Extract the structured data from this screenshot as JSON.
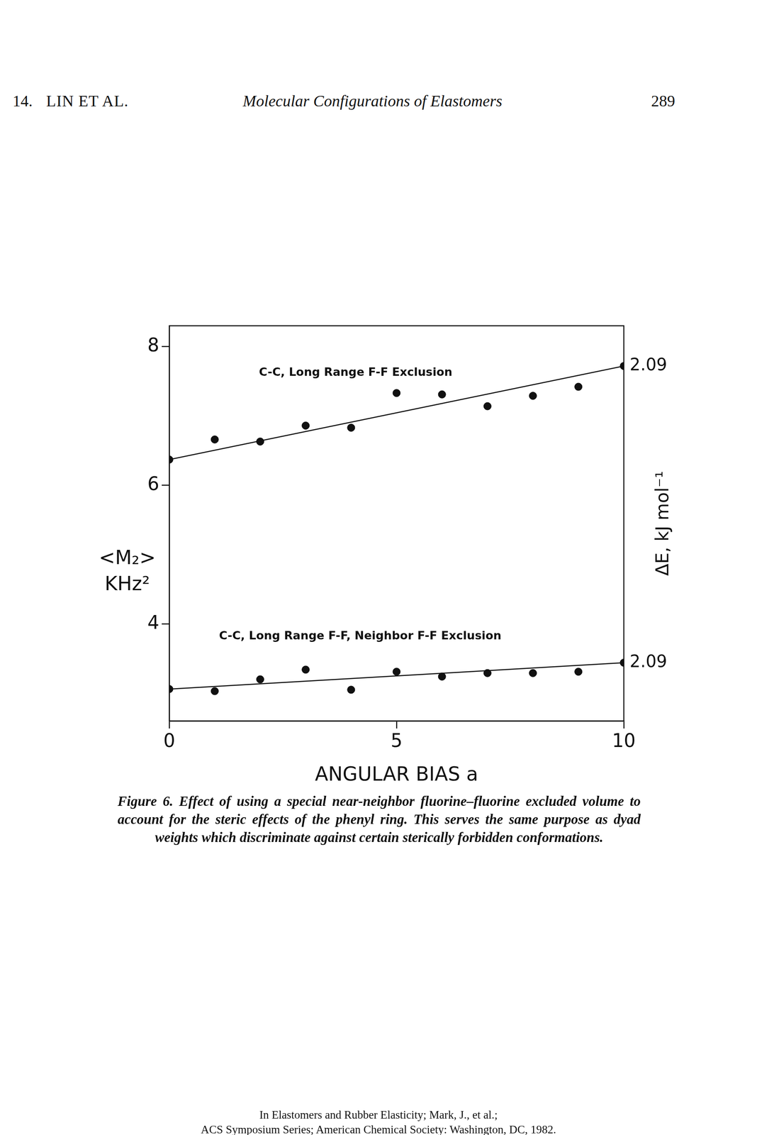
{
  "header": {
    "number": "14.",
    "authors": "LIN ET AL.",
    "title": "Molecular Configurations of Elastomers",
    "page": "289"
  },
  "chart_data": {
    "type": "scatter",
    "xlabel": "ANGULAR BIAS a",
    "ylabel": [
      "<M₂>",
      "KHz²"
    ],
    "y2label": "ΔE, kJ mol⁻¹",
    "xlim": [
      0,
      10
    ],
    "xticks": [
      0,
      5,
      10
    ],
    "ylim": [
      2.6,
      8.3
    ],
    "yticks": [
      4,
      6,
      8
    ],
    "grid": false,
    "legend": false,
    "series": [
      {
        "color": "#111111",
        "marker": "circle",
        "line_style": "none",
        "x": [
          0,
          1,
          2,
          3,
          4,
          5,
          6,
          7,
          8,
          9,
          10
        ],
        "values": [
          6.37,
          6.66,
          6.63,
          6.86,
          6.83,
          7.33,
          7.31,
          7.14,
          7.29,
          7.42,
          7.72
        ]
      },
      {
        "color": "#111111",
        "marker": "none",
        "line_style": "solid",
        "x": [
          0,
          10
        ],
        "values": [
          6.37,
          7.72
        ]
      },
      {
        "color": "#111111",
        "marker": "circle",
        "line_style": "none",
        "x": [
          0,
          1,
          2,
          3,
          4,
          5,
          6,
          7,
          8,
          9,
          10
        ],
        "values": [
          3.06,
          3.03,
          3.2,
          3.34,
          3.05,
          3.31,
          3.24,
          3.29,
          3.29,
          3.31,
          3.44
        ]
      },
      {
        "color": "#111111",
        "marker": "none",
        "line_style": "solid",
        "x": [
          0,
          10
        ],
        "values": [
          3.06,
          3.44
        ]
      }
    ],
    "annotations": [
      {
        "text": "C-C, Long Range F-F Exclusion",
        "x": 4.1,
        "y": 7.62
      },
      {
        "text": "C-C, Long Range F-F, Neighbor F-F Exclusion",
        "x": 4.2,
        "y": 3.82
      },
      {
        "text": "2.09",
        "x": 10,
        "y": 7.72
      },
      {
        "text": "2.09",
        "x": 10,
        "y": 3.44
      }
    ]
  },
  "caption": "Figure 6. Effect of using a special near-neighbor fluorine–fluorine excluded volume to account for the steric effects of the phenyl ring. This serves the same purpose as dyad weights which discriminate against certain sterically forbidden conformations.",
  "footer": [
    "In Elastomers and Rubber Elasticity; Mark, J., et al.;",
    "ACS Symposium Series; American Chemical Society: Washington, DC, 1982."
  ]
}
